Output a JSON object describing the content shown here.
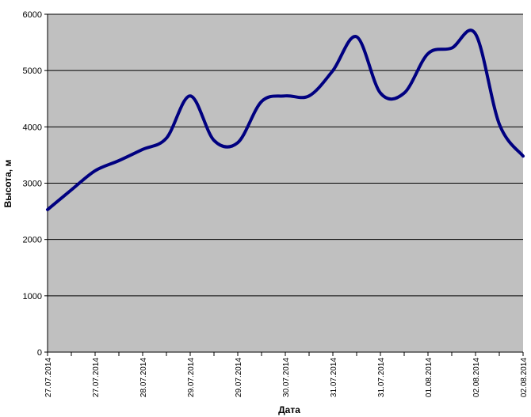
{
  "chart_data": {
    "type": "line",
    "title": "",
    "xlabel": "Дата",
    "ylabel": "Высота, м",
    "ylim": [
      0,
      6000
    ],
    "yticks": [
      0,
      1000,
      2000,
      3000,
      4000,
      5000,
      6000
    ],
    "xtick_labels": [
      "27.07.2014",
      "27.07.2014",
      "28.07.2014",
      "29.07.2014",
      "29.07.2014",
      "30.07.2014",
      "31.07.2014",
      "31.07.2014",
      "01.08.2014",
      "02.08.2014",
      "02.08.2014"
    ],
    "grid": "horizontal",
    "legend": "none",
    "line_color": "#000080",
    "plot_background": "#c0c0c0",
    "series": [
      {
        "x": [
          0,
          0.5,
          1,
          1.5,
          2,
          2.5,
          3,
          3.5,
          4,
          4.5,
          5,
          5.5,
          6,
          6.5,
          7,
          7.5,
          8,
          8.5,
          9,
          9.5,
          10
        ],
        "values": [
          2530,
          2880,
          3220,
          3400,
          3600,
          3800,
          4550,
          3760,
          3720,
          4450,
          4550,
          4550,
          5000,
          5600,
          4600,
          4600,
          5300,
          5400,
          5650,
          4050,
          3480
        ]
      }
    ]
  }
}
